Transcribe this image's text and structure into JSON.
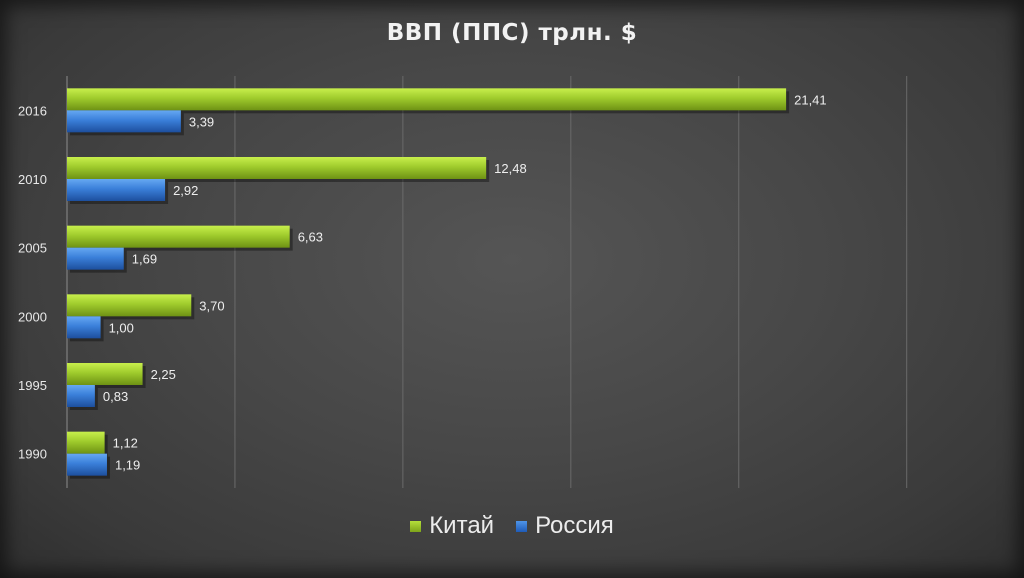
{
  "chart_data": {
    "type": "bar",
    "orientation": "horizontal",
    "title": "ВВП (ППС) трлн. $",
    "categories": [
      "1990",
      "1995",
      "2000",
      "2005",
      "2010",
      "2016"
    ],
    "series": [
      {
        "name": "Китай",
        "color": "#9cc92b",
        "values": [
          1.12,
          2.25,
          3.7,
          6.63,
          12.48,
          21.41
        ],
        "labels": [
          "1,12",
          "2,25",
          "3,70",
          "6,63",
          "12,48",
          "21,41"
        ]
      },
      {
        "name": "Россия",
        "color": "#3a7fd9",
        "values": [
          1.19,
          0.83,
          1.0,
          1.69,
          2.92,
          3.39
        ],
        "labels": [
          "1,19",
          "0,83",
          "1,00",
          "1,69",
          "2,92",
          "3,39"
        ]
      }
    ],
    "xlim": [
      0,
      25
    ],
    "grid": true,
    "legend": "bottom"
  }
}
